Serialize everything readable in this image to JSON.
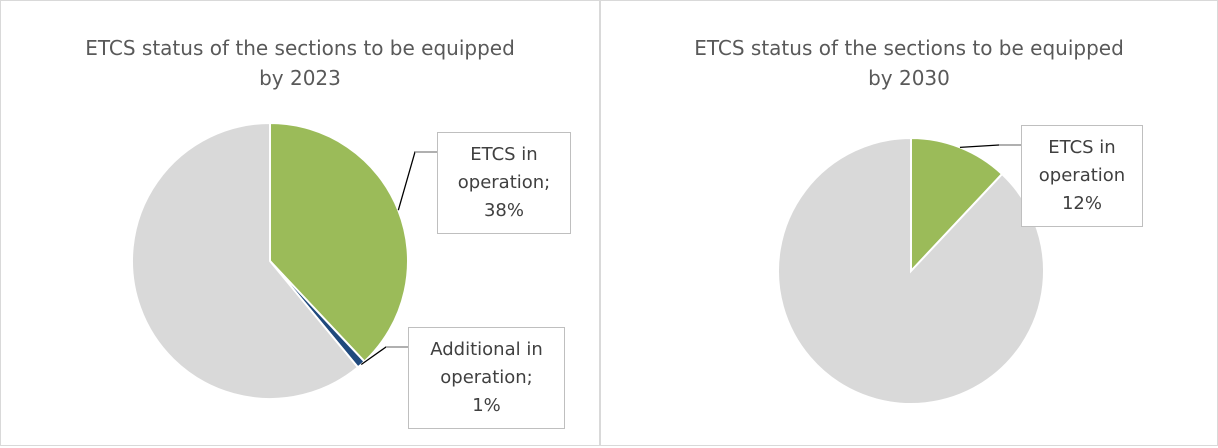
{
  "chart_data": [
    {
      "type": "pie",
      "title": "ETCS status of the sections to be equipped by 2023",
      "categories": [
        "ETCS in operation;",
        "Additional in operation;",
        null
      ],
      "values": [
        38,
        1,
        61
      ],
      "value_labels": [
        "38%",
        "1%",
        null
      ],
      "colors": [
        "#9bbb59",
        "#1f497d",
        "#d9d9d9"
      ]
    },
    {
      "type": "pie",
      "title": "ETCS status of the sections to be equipped by 2030",
      "categories": [
        "ETCS in operation",
        null
      ],
      "values": [
        12,
        88
      ],
      "value_labels": [
        "12%",
        null
      ],
      "colors": [
        "#9bbb59",
        "#d9d9d9"
      ]
    }
  ]
}
